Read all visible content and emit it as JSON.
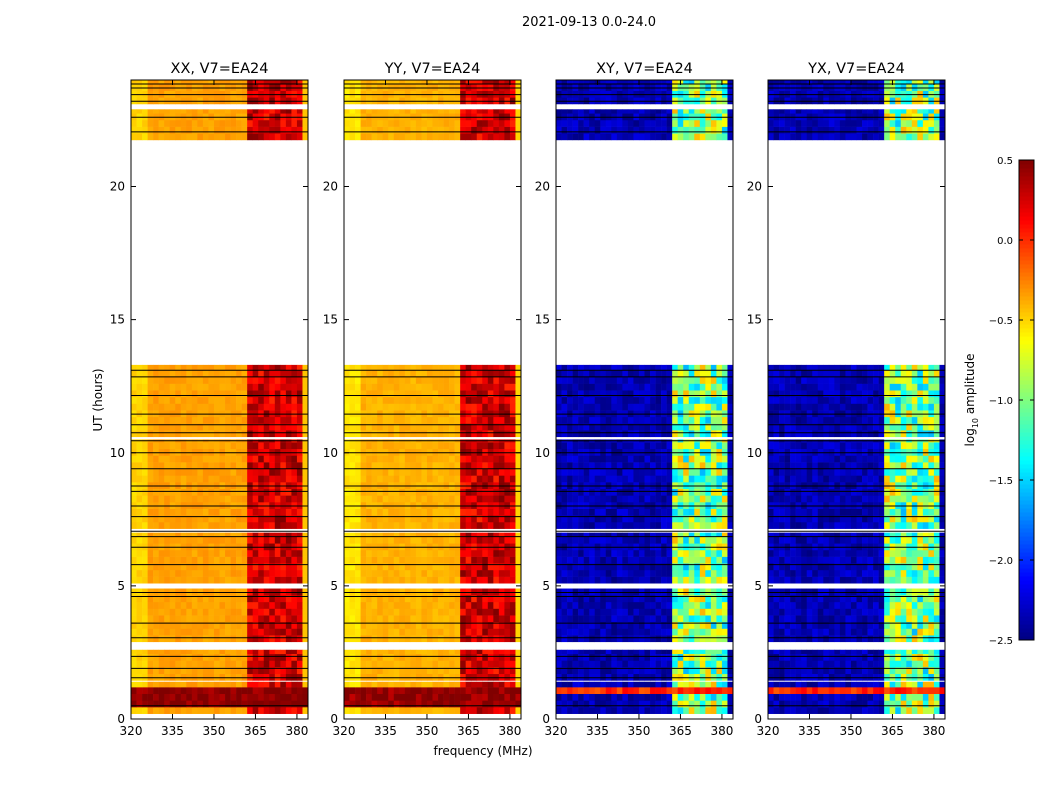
{
  "chart_data": {
    "type": "heatmap",
    "title": "2021-09-13 0.0-24.0",
    "xlabel": "frequency (MHz)",
    "ylabel": "UT (hours)",
    "xlim": [
      320,
      384
    ],
    "ylim": [
      0,
      24
    ],
    "xticks": [
      "320",
      "335",
      "350",
      "365",
      "380"
    ],
    "yticks": [
      "0",
      "5",
      "10",
      "15",
      "20"
    ],
    "colorbar": {
      "label_main": "log",
      "label_sub": "10",
      "label_rest": " amplitude",
      "range": [
        -2.5,
        0.5
      ],
      "ticks": [
        "0.5",
        "0.0",
        "−0.5",
        "−1.0",
        "−1.5",
        "−2.0",
        "−2.5"
      ],
      "colormap": "jet"
    },
    "data_segments_hours": [
      [
        0.2,
        1.4
      ],
      [
        1.45,
        2.6
      ],
      [
        2.9,
        4.9
      ],
      [
        5.1,
        7.0
      ],
      [
        7.15,
        10.5
      ],
      [
        10.6,
        13.3
      ],
      [
        21.75,
        22.9
      ],
      [
        23.1,
        24.0
      ]
    ],
    "flag_lines_hours": [
      0.5,
      1.55,
      1.9,
      2.35,
      3.05,
      3.6,
      4.6,
      4.75,
      5.8,
      6.45,
      6.85,
      7.05,
      7.6,
      8.0,
      8.55,
      8.75,
      9.4,
      10.0,
      10.45,
      10.75,
      11.05,
      11.45,
      12.15,
      12.85,
      13.1,
      22.05,
      22.6,
      23.2,
      23.45,
      23.7,
      23.85
    ],
    "rfi_band_mhz": [
      362,
      381
    ],
    "panels": [
      {
        "title": "XX, V7=EA24",
        "base_log_amp": -0.35,
        "rfi_log_amp": 0.25,
        "low_band_hours": [
          0.3,
          1.35
        ],
        "low_band_log_amp": 0.5
      },
      {
        "title": "YY, V7=EA24",
        "base_log_amp": -0.4,
        "rfi_log_amp": 0.25,
        "low_band_hours": [
          0.3,
          1.35
        ],
        "low_band_log_amp": 0.45
      },
      {
        "title": "XY, V7=EA24",
        "base_log_amp": -2.35,
        "rfi_log_amp": -1.0,
        "low_band_hours": [
          0.75,
          1.3
        ],
        "low_band_log_amp": 0.0
      },
      {
        "title": "YX, V7=EA24",
        "base_log_amp": -2.35,
        "rfi_log_amp": -1.0,
        "low_band_hours": [
          0.75,
          1.3
        ],
        "low_band_log_amp": 0.0
      }
    ]
  }
}
